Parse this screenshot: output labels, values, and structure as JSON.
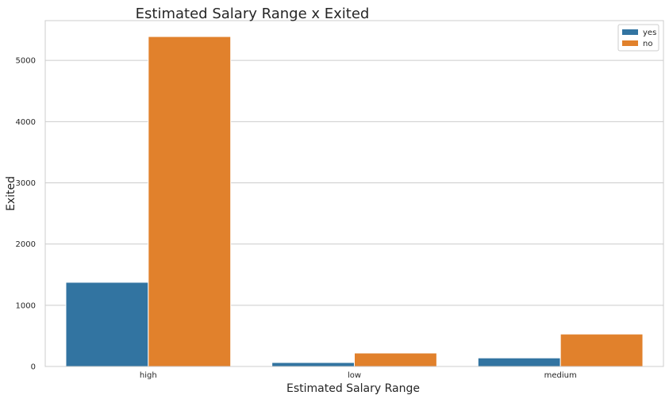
{
  "chart_data": {
    "type": "bar",
    "title": "Estimated Salary Range x Exited",
    "xlabel": "Estimated Salary Range",
    "ylabel": "Exited",
    "categories": [
      "high",
      "low",
      "medium"
    ],
    "series": [
      {
        "name": "yes",
        "values": [
          1375,
          65,
          140
        ],
        "color": "#3274a1"
      },
      {
        "name": "no",
        "values": [
          5390,
          220,
          530
        ],
        "color": "#e1812c"
      }
    ],
    "ylim": [
      0,
      5650
    ],
    "yticks": [
      0,
      1000,
      2000,
      3000,
      4000,
      5000
    ],
    "ytick_labels": [
      "0",
      "1000",
      "2000",
      "3000",
      "4000",
      "5000"
    ],
    "grid": "horizontal",
    "legend_position": "top-right",
    "style": {
      "background": "#ffffff",
      "grid_color": "#cccccc",
      "spine_color": "#cccccc"
    }
  }
}
